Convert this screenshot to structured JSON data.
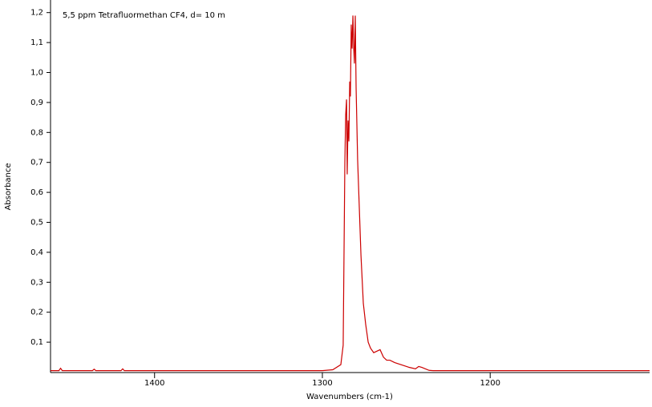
{
  "chart_data": {
    "type": "line",
    "annotation": "5,5 ppm Tetrafluormethan CF4, d= 10 m",
    "xlabel": "Wavenumbers (cm-1)",
    "ylabel": "Absorbance",
    "color": "#cc0000",
    "x": [
      1462,
      1457,
      1456,
      1455,
      1437,
      1436,
      1435,
      1420,
      1419,
      1418,
      1300,
      1293.8,
      1289.0,
      1287.6,
      1286.6,
      1286.1,
      1285.6,
      1285.2,
      1284.7,
      1284.2,
      1283.7,
      1283.3,
      1282.8,
      1282.3,
      1281.8,
      1281.3,
      1280.9,
      1280.4,
      1279.9,
      1279.0,
      1278.0,
      1277.0,
      1275.6,
      1274.2,
      1272.7,
      1271.3,
      1269.4,
      1267.5,
      1265.6,
      1263.6,
      1261.7,
      1259.8,
      1256.9,
      1253.1,
      1248.3,
      1244.5,
      1242.6,
      1240.7,
      1236.4,
      1234.0,
      1105
    ],
    "values": [
      0.005,
      0.005,
      0.013,
      0.005,
      0.005,
      0.01,
      0.005,
      0.005,
      0.011,
      0.005,
      0.005,
      0.008,
      0.025,
      0.09,
      0.7,
      0.86,
      0.91,
      0.66,
      0.84,
      0.77,
      0.97,
      0.92,
      1.16,
      1.08,
      1.19,
      1.08,
      1.03,
      1.19,
      0.95,
      0.71,
      0.55,
      0.39,
      0.23,
      0.16,
      0.1,
      0.08,
      0.065,
      0.07,
      0.075,
      0.05,
      0.04,
      0.04,
      0.032,
      0.025,
      0.016,
      0.011,
      0.019,
      0.016,
      0.006,
      0.005,
      0.005
    ],
    "xlim": [
      1462,
      1105
    ],
    "xticks": [
      1400,
      1300,
      1200
    ],
    "ylim": [
      0,
      1.242
    ],
    "yticks": [
      {
        "value": 0.1,
        "label": "0,1"
      },
      {
        "value": 0.2,
        "label": "0,2"
      },
      {
        "value": 0.3,
        "label": "0,3"
      },
      {
        "value": 0.4,
        "label": "0,4"
      },
      {
        "value": 0.5,
        "label": "0,5"
      },
      {
        "value": 0.6,
        "label": "0,6"
      },
      {
        "value": 0.7,
        "label": "0,7"
      },
      {
        "value": 0.8,
        "label": "0,8"
      },
      {
        "value": 0.9,
        "label": "0,9"
      },
      {
        "value": 1.0,
        "label": "1,0"
      },
      {
        "value": 1.1,
        "label": "1,1"
      },
      {
        "value": 1.2,
        "label": "1,2"
      }
    ],
    "grid": false
  }
}
